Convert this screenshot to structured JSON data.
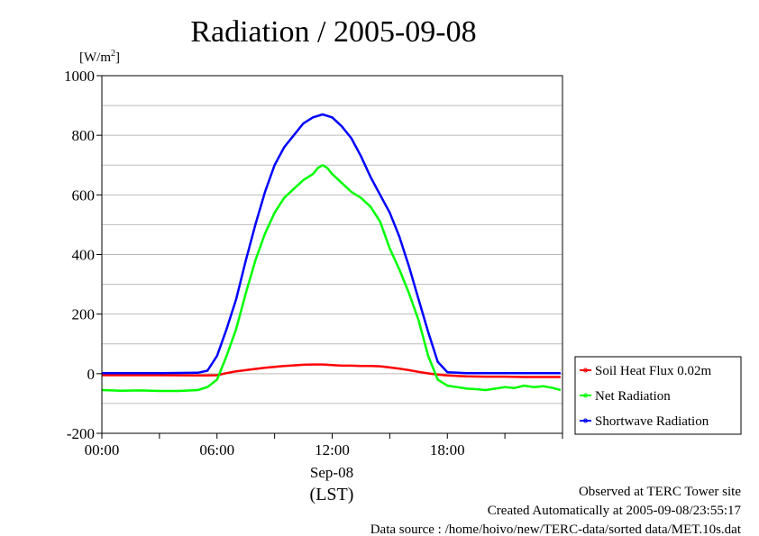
{
  "chart_data": {
    "type": "line",
    "title": "Radiation / 2005-09-08",
    "ylabel_unit": "[W/m",
    "ylabel_unit_sup": "2",
    "ylabel_unit_close": "]",
    "ylim": [
      -200,
      1000
    ],
    "yticks": [
      -200,
      0,
      200,
      400,
      600,
      800,
      1000
    ],
    "ytick_labels": [
      "-200",
      "0",
      "200",
      "400",
      "600",
      "800",
      "1000"
    ],
    "xlim_hours": [
      0,
      24
    ],
    "xticks_hours": [
      0,
      6,
      12,
      18
    ],
    "xtick_labels": [
      "00:00",
      "06:00",
      "12:00",
      "18:00"
    ],
    "xlabel_date": "Sep-08",
    "xlabel_zone": "(LST)",
    "grid": true,
    "legend_position": "right",
    "series": [
      {
        "name": "Soil Heat Flux 0.02m",
        "color": "#ff0000",
        "x": [
          0,
          3,
          5,
          5.5,
          6,
          6.5,
          7,
          7.5,
          8,
          8.5,
          9,
          9.5,
          10,
          10.5,
          11,
          11.5,
          12,
          12.5,
          13,
          13.5,
          14,
          14.5,
          15,
          15.5,
          16,
          16.5,
          17,
          17.5,
          18,
          19,
          20,
          21,
          22,
          23,
          23.9
        ],
        "values": [
          -5,
          -5,
          -6,
          -6,
          -5,
          2,
          8,
          12,
          16,
          20,
          23,
          26,
          28,
          30,
          31,
          31,
          29,
          27,
          27,
          26,
          26,
          25,
          21,
          17,
          12,
          6,
          1,
          -3,
          -6,
          -9,
          -10,
          -10,
          -11,
          -11,
          -11
        ]
      },
      {
        "name": "Net Radiation",
        "color": "#00ff00",
        "x": [
          0,
          1,
          2,
          3,
          4,
          5,
          5.5,
          6,
          6.5,
          7,
          7.5,
          8,
          8.5,
          9,
          9.5,
          10,
          10.5,
          11,
          11.25,
          11.5,
          11.75,
          12,
          12.5,
          13,
          13.5,
          14,
          14.5,
          15,
          15.5,
          16,
          16.5,
          17,
          17.5,
          18,
          18.5,
          19,
          19.5,
          20,
          20.5,
          21,
          21.5,
          22,
          22.5,
          23,
          23.5,
          23.9
        ],
        "values": [
          -55,
          -57,
          -56,
          -58,
          -58,
          -55,
          -45,
          -20,
          60,
          150,
          270,
          380,
          470,
          540,
          590,
          620,
          650,
          670,
          690,
          700,
          690,
          670,
          640,
          610,
          590,
          560,
          510,
          420,
          350,
          270,
          180,
          60,
          -20,
          -40,
          -45,
          -50,
          -52,
          -55,
          -50,
          -45,
          -48,
          -40,
          -45,
          -42,
          -48,
          -55
        ]
      },
      {
        "name": "Shortwave Radiation",
        "color": "#0000ff",
        "x": [
          0,
          3,
          5,
          5.5,
          6,
          6.5,
          7,
          7.5,
          8,
          8.5,
          9,
          9.5,
          10,
          10.5,
          11,
          11.5,
          12,
          12.5,
          13,
          13.5,
          14,
          14.5,
          15,
          15.5,
          16,
          16.5,
          17,
          17.5,
          18,
          19,
          20,
          22,
          23.9
        ],
        "values": [
          2,
          2,
          3,
          10,
          60,
          150,
          250,
          380,
          500,
          610,
          700,
          760,
          800,
          840,
          860,
          870,
          860,
          830,
          790,
          730,
          660,
          600,
          540,
          460,
          360,
          250,
          140,
          40,
          5,
          2,
          2,
          2,
          2
        ]
      }
    ]
  },
  "footer": {
    "observed": "Observed at TERC Tower site",
    "created": "Created Automatically at 2005-09-08/23:55:17",
    "source": "Data source : /home/hoivo/new/TERC-data/sorted data/MET.10s.dat"
  }
}
